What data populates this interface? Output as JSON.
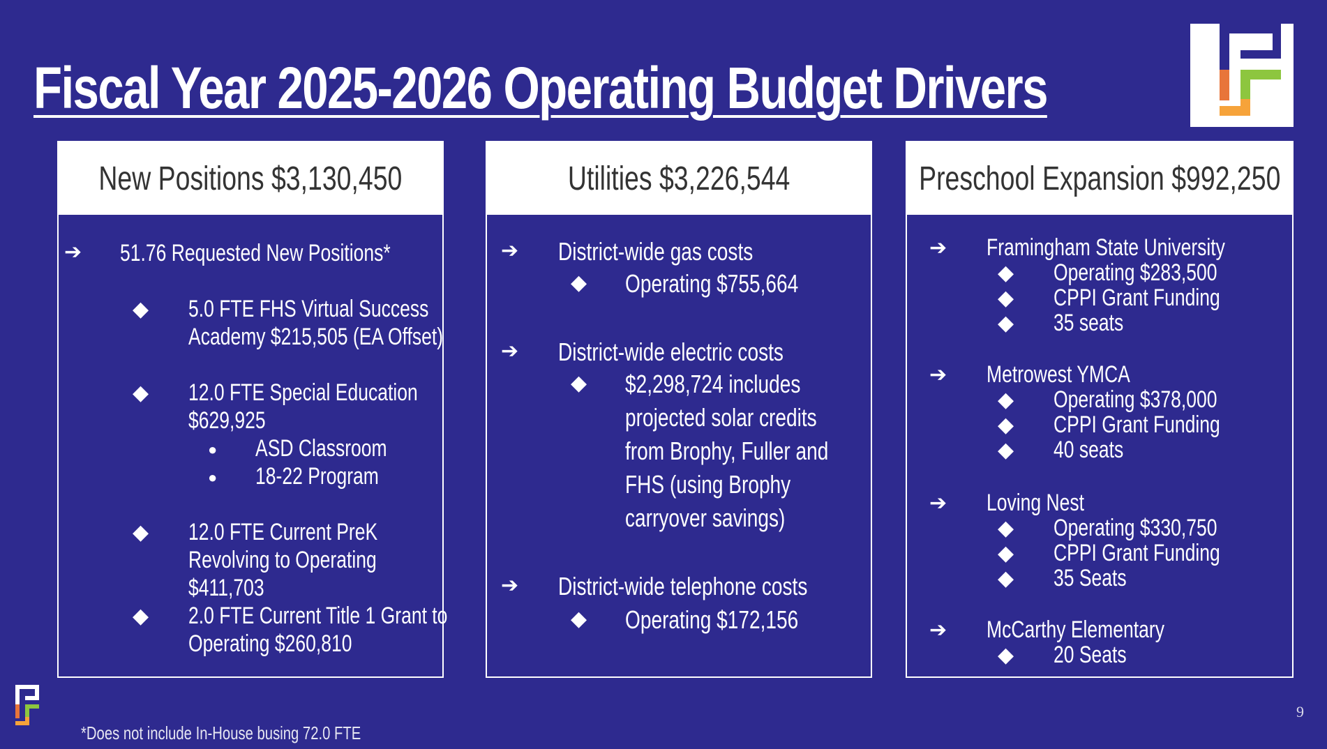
{
  "title": "Fiscal Year 2025-2026 Operating Budget Drivers",
  "colors": {
    "background": "#2e2a8f",
    "logo_navy": "#2e2a8f",
    "logo_orange": "#e8753a",
    "logo_green": "#8dc63f",
    "logo_orange_light": "#f6a33a"
  },
  "panels": [
    {
      "heading": "New Positions $3,130,450",
      "items": [
        "51.76 Requested New Positions*",
        "5.0 FTE FHS Virtual Success",
        "Academy $215,505 (EA Offset)",
        "12.0 FTE Special Education",
        "$629,925",
        "ASD Classroom",
        "18-22 Program",
        "12.0 FTE Current PreK",
        "Revolving to Operating",
        "$411,703",
        "2.0 FTE Current Title 1 Grant to",
        "Operating $260,810"
      ]
    },
    {
      "heading": "Utilities $3,226,544",
      "items": [
        "District-wide gas costs",
        "Operating $755,664",
        "District-wide electric costs",
        "$2,298,724 includes",
        "projected solar credits",
        "from Brophy, Fuller and",
        "FHS (using Brophy",
        "carryover savings)",
        "District-wide telephone costs",
        "Operating  $172,156"
      ]
    },
    {
      "heading": "Preschool Expansion $992,250",
      "items": [
        "Framingham State University",
        "Operating $283,500",
        "CPPI Grant Funding",
        "35 seats",
        "Metrowest YMCA",
        "Operating $378,000",
        "CPPI Grant Funding",
        "40 seats",
        "Loving Nest",
        "Operating $330,750",
        "CPPI Grant Funding",
        "35 Seats",
        "McCarthy Elementary",
        "20 Seats"
      ]
    }
  ],
  "bullets": {
    "arrow": "➔",
    "diamond": "◆",
    "dot": "●"
  },
  "footnote": "*Does not include In-House busing 72.0 FTE",
  "page_number": "9"
}
